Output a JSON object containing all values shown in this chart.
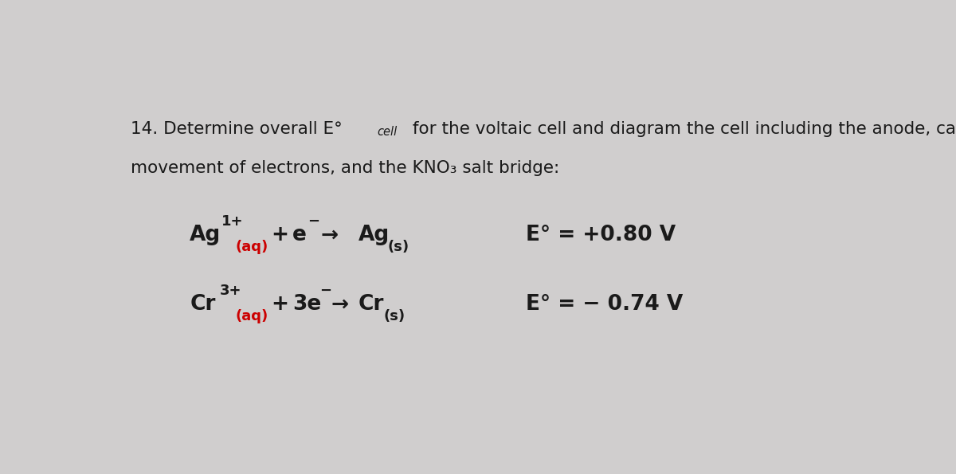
{
  "background_color": "#d0cece",
  "text_color": "#1a1a1a",
  "red_color": "#cc0000",
  "font_size_title": 15.5,
  "font_size_eq": 19,
  "font_size_eq_small": 13,
  "font_size_cell": 10.5,
  "title_part1": "14. Determine overall E°",
  "title_cell": "cell",
  "title_part2": " for the voltaic cell and diagram the cell including the anode, cathode,",
  "title_line2": "movement of electrons, and the KNO₃ salt bridge:",
  "eq1_Ag1": "Ag",
  "eq1_sup1": "1+",
  "eq1_aq1": "(aq)",
  "eq1_plus": "+",
  "eq1_e": "e",
  "eq1_eminus": "−",
  "eq1_arrow": "→",
  "eq1_Ag2": "Ag",
  "eq1_s": "(s)",
  "eq1_E": "E° = +0.80 V",
  "eq2_Cr1": "Cr",
  "eq2_sup1": "3+",
  "eq2_aq1": "(aq)",
  "eq2_plus": "+",
  "eq2_3e": "3e",
  "eq2_eminus": "−",
  "eq2_arrow": "→",
  "eq2_Cr2": "Cr",
  "eq2_s": "(s)",
  "eq2_E": "E° = − 0.74 V"
}
